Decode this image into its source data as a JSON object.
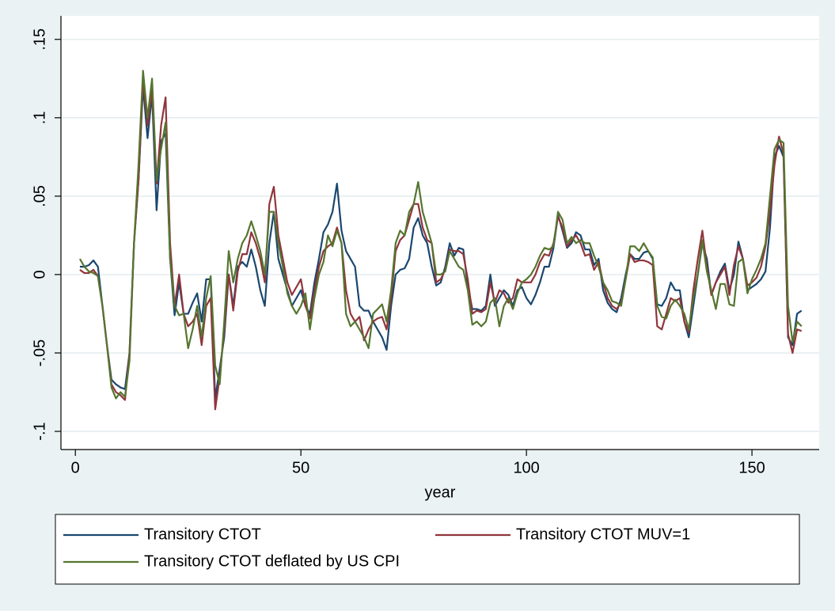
{
  "chart_data": {
    "type": "line",
    "x_label": "year",
    "x": [
      1,
      2,
      3,
      4,
      5,
      6,
      7,
      8,
      9,
      10,
      11,
      12,
      13,
      14,
      15,
      16,
      17,
      18,
      19,
      20,
      21,
      22,
      23,
      24,
      25,
      26,
      27,
      28,
      29,
      30,
      31,
      32,
      33,
      34,
      35,
      36,
      37,
      38,
      39,
      40,
      41,
      42,
      43,
      44,
      45,
      46,
      47,
      48,
      49,
      50,
      51,
      52,
      53,
      54,
      55,
      56,
      57,
      58,
      59,
      60,
      61,
      62,
      63,
      64,
      65,
      66,
      67,
      68,
      69,
      70,
      71,
      72,
      73,
      74,
      75,
      76,
      77,
      78,
      79,
      80,
      81,
      82,
      83,
      84,
      85,
      86,
      87,
      88,
      89,
      90,
      91,
      92,
      93,
      94,
      95,
      96,
      97,
      98,
      99,
      100,
      101,
      102,
      103,
      104,
      105,
      106,
      107,
      108,
      109,
      110,
      111,
      112,
      113,
      114,
      115,
      116,
      117,
      118,
      119,
      120,
      121,
      122,
      123,
      124,
      125,
      126,
      127,
      128,
      129,
      130,
      131,
      132,
      133,
      134,
      135,
      136,
      137,
      138,
      139,
      140,
      141,
      142,
      143,
      144,
      145,
      146,
      147,
      148,
      149,
      150,
      151,
      152,
      153,
      154,
      155,
      156,
      157,
      158,
      159,
      160,
      161
    ],
    "series": [
      {
        "name": "Transitory CTOT",
        "color": "#1a476f",
        "values": [
          0.005,
          0.005,
          0.006,
          0.009,
          0.005,
          -0.02,
          -0.045,
          -0.067,
          -0.07,
          -0.072,
          -0.073,
          -0.05,
          0.02,
          0.06,
          0.12,
          0.087,
          0.115,
          0.041,
          0.085,
          0.09,
          0.01,
          -0.026,
          -0.005,
          -0.025,
          -0.025,
          -0.018,
          -0.012,
          -0.03,
          -0.003,
          -0.003,
          -0.079,
          -0.06,
          -0.04,
          0,
          -0.02,
          0.005,
          0.008,
          0.005,
          0.016,
          0.005,
          -0.01,
          -0.02,
          0.02,
          0.04,
          0.01,
          0,
          -0.01,
          -0.02,
          -0.015,
          -0.01,
          -0.02,
          -0.025,
          -0.005,
          0.01,
          0.027,
          0.032,
          0.04,
          0.058,
          0.028,
          0.015,
          0.01,
          0.005,
          -0.02,
          -0.023,
          -0.023,
          -0.03,
          -0.035,
          -0.04,
          -0.048,
          -0.02,
          0,
          0.003,
          0.004,
          0.01,
          0.03,
          0.036,
          0.025,
          0.02,
          0.005,
          -0.007,
          -0.005,
          0.005,
          0.02,
          0.012,
          0.017,
          0.016,
          -0.007,
          -0.022,
          -0.022,
          -0.023,
          -0.02,
          0,
          -0.02,
          -0.015,
          -0.01,
          -0.013,
          -0.02,
          -0.01,
          -0.008,
          -0.015,
          -0.019,
          -0.013,
          -0.005,
          0.005,
          0.005,
          0.017,
          0.038,
          0.028,
          0.017,
          0.02,
          0.027,
          0.025,
          0.016,
          0.016,
          0.006,
          0.01,
          -0.01,
          -0.018,
          -0.022,
          -0.024,
          -0.015,
          0,
          0.013,
          0.01,
          0.01,
          0.014,
          0.015,
          0.01,
          -0.019,
          -0.02,
          -0.015,
          -0.005,
          -0.01,
          -0.01,
          -0.03,
          -0.04,
          -0.02,
          0,
          0.02,
          0.01,
          -0.013,
          -0.005,
          0.002,
          0.007,
          -0.01,
          0,
          0.021,
          0.01,
          -0.01,
          -0.008,
          -0.006,
          -0.003,
          0.002,
          0.03,
          0.075,
          0.082,
          0.075,
          -0.04,
          -0.045,
          -0.025,
          -0.023
        ]
      },
      {
        "name": "Transitory CTOT MUV=1",
        "color": "#90353b",
        "values": [
          0.003,
          0.001,
          0.001,
          0.003,
          -0.001,
          -0.02,
          -0.045,
          -0.07,
          -0.075,
          -0.077,
          -0.08,
          -0.05,
          0.02,
          0.06,
          0.125,
          0.095,
          0.118,
          0.058,
          0.095,
          0.113,
          0.02,
          -0.02,
          0,
          -0.025,
          -0.033,
          -0.03,
          -0.025,
          -0.045,
          -0.02,
          -0.015,
          -0.086,
          -0.065,
          -0.035,
          0,
          -0.023,
          0.002,
          0.013,
          0.013,
          0.027,
          0.02,
          0.01,
          -0.005,
          0.045,
          0.056,
          0.025,
          0.01,
          -0.005,
          -0.013,
          -0.008,
          -0.003,
          -0.02,
          -0.028,
          -0.01,
          0.005,
          0.015,
          0.018,
          0.02,
          0.03,
          0.02,
          -0.01,
          -0.025,
          -0.03,
          -0.027,
          -0.042,
          -0.035,
          -0.03,
          -0.028,
          -0.027,
          -0.035,
          -0.015,
          0.015,
          0.022,
          0.025,
          0.035,
          0.045,
          0.045,
          0.03,
          0.022,
          0.02,
          -0.005,
          -0.003,
          0.003,
          0.016,
          0.015,
          0.015,
          0.013,
          -0.003,
          -0.025,
          -0.023,
          -0.024,
          -0.022,
          -0.005,
          -0.018,
          -0.01,
          -0.012,
          -0.018,
          -0.015,
          -0.003,
          -0.005,
          -0.005,
          -0.005,
          0,
          0.008,
          0.013,
          0.012,
          0.02,
          0.037,
          0.03,
          0.018,
          0.022,
          0.025,
          0.02,
          0.012,
          0.013,
          0.003,
          0.008,
          -0.005,
          -0.015,
          -0.02,
          -0.022,
          -0.018,
          -0.003,
          0.013,
          0.008,
          0.009,
          0.009,
          0.008,
          0.006,
          -0.033,
          -0.035,
          -0.025,
          -0.015,
          -0.017,
          -0.015,
          -0.03,
          -0.037,
          -0.01,
          0.01,
          0.028,
          0.005,
          -0.013,
          -0.005,
          0,
          0.005,
          -0.013,
          0.006,
          0.018,
          0.01,
          -0.007,
          -0.005,
          -0.002,
          0.005,
          0.018,
          0.04,
          0.07,
          0.088,
          0.077,
          -0.038,
          -0.05,
          -0.035,
          -0.036
        ]
      },
      {
        "name": "Transitory CTOT deflated by US CPI",
        "color": "#55752f",
        "values": [
          0.01,
          0.005,
          0.002,
          0.001,
          -0.001,
          -0.02,
          -0.045,
          -0.072,
          -0.079,
          -0.075,
          -0.078,
          -0.055,
          0.02,
          0.07,
          0.13,
          0.1,
          0.125,
          0.06,
          0.08,
          0.097,
          0.01,
          -0.02,
          -0.026,
          -0.025,
          -0.047,
          -0.035,
          -0.02,
          -0.04,
          -0.015,
          -0.001,
          -0.058,
          -0.07,
          -0.03,
          0.015,
          -0.005,
          0.01,
          0.02,
          0.025,
          0.034,
          0.025,
          0.015,
          0,
          0.04,
          0.04,
          0.02,
          0.005,
          -0.012,
          -0.02,
          -0.025,
          -0.02,
          -0.012,
          -0.035,
          -0.015,
          0,
          0.008,
          0.025,
          0.018,
          0.028,
          0.02,
          -0.025,
          -0.033,
          -0.03,
          -0.035,
          -0.04,
          -0.047,
          -0.025,
          -0.022,
          -0.019,
          -0.03,
          -0.01,
          0.02,
          0.028,
          0.025,
          0.04,
          0.045,
          0.059,
          0.04,
          0.03,
          0.02,
          0,
          0,
          0.002,
          0.015,
          0.01,
          0.005,
          0.003,
          -0.01,
          -0.032,
          -0.03,
          -0.033,
          -0.03,
          -0.018,
          -0.015,
          -0.033,
          -0.02,
          -0.015,
          -0.022,
          -0.012,
          -0.005,
          -0.003,
          0,
          0.005,
          0.012,
          0.017,
          0.016,
          0.018,
          0.04,
          0.035,
          0.02,
          0.024,
          0.02,
          0.022,
          0.02,
          0.02,
          0.012,
          0.005,
          -0.005,
          -0.01,
          -0.017,
          -0.018,
          -0.02,
          -0.003,
          0.018,
          0.018,
          0.015,
          0.02,
          0.015,
          0.011,
          -0.02,
          -0.027,
          -0.028,
          -0.02,
          -0.016,
          -0.02,
          -0.025,
          -0.035,
          -0.015,
          0,
          0.022,
          0.002,
          -0.01,
          -0.022,
          -0.006,
          -0.006,
          -0.019,
          -0.02,
          0.008,
          0.01,
          -0.012,
          -0.003,
          0.003,
          0.01,
          0.02,
          0.05,
          0.08,
          0.086,
          0.084,
          -0.02,
          -0.043,
          -0.03,
          -0.033
        ]
      }
    ],
    "xlim": [
      -3.2,
      164.9
    ],
    "ylim": [
      -0.1116,
      0.165
    ],
    "xticks": [
      0,
      50,
      100,
      150
    ],
    "yticks": [
      {
        "value": -0.1,
        "label": "-.1"
      },
      {
        "value": -0.05,
        "label": "-.05"
      },
      {
        "value": 0,
        "label": "0"
      },
      {
        "value": 0.05,
        "label": ".05"
      },
      {
        "value": 0.1,
        "label": ".1"
      },
      {
        "value": 0.15,
        "label": ".15"
      }
    ],
    "grid": true,
    "legend": "bottom"
  }
}
